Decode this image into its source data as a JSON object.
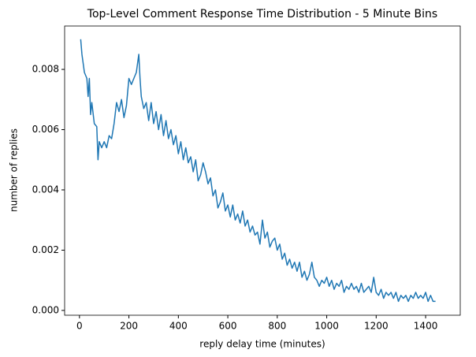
{
  "chart_data": {
    "type": "line",
    "title": "Top-Level Comment Response Time Distribution - 5 Minute Bins",
    "x_label": "reply delay time (minutes)",
    "y_label": "number of replies",
    "x": [
      5,
      10,
      20,
      30,
      35,
      40,
      45,
      50,
      60,
      70,
      75,
      80,
      90,
      100,
      110,
      120,
      130,
      140,
      150,
      160,
      170,
      180,
      190,
      200,
      210,
      220,
      230,
      240,
      245,
      250,
      260,
      270,
      280,
      290,
      300,
      310,
      320,
      330,
      340,
      350,
      360,
      370,
      380,
      390,
      400,
      410,
      420,
      430,
      440,
      450,
      460,
      470,
      480,
      490,
      500,
      510,
      520,
      530,
      540,
      550,
      560,
      570,
      580,
      590,
      600,
      610,
      620,
      630,
      640,
      650,
      660,
      670,
      680,
      690,
      700,
      710,
      720,
      730,
      740,
      750,
      760,
      770,
      780,
      790,
      800,
      810,
      820,
      830,
      840,
      850,
      860,
      870,
      880,
      890,
      900,
      910,
      920,
      930,
      940,
      950,
      960,
      970,
      980,
      990,
      1000,
      1010,
      1020,
      1030,
      1040,
      1050,
      1060,
      1070,
      1080,
      1090,
      1100,
      1110,
      1120,
      1130,
      1140,
      1150,
      1160,
      1170,
      1180,
      1190,
      1200,
      1210,
      1220,
      1230,
      1240,
      1250,
      1260,
      1270,
      1280,
      1290,
      1300,
      1310,
      1320,
      1330,
      1340,
      1350,
      1360,
      1370,
      1380,
      1390,
      1400,
      1410,
      1420,
      1430,
      1440
    ],
    "series": [
      {
        "color": "#1f77b4",
        "values": [
          0.009,
          0.0085,
          0.0079,
          0.0077,
          0.0071,
          0.0077,
          0.0065,
          0.0069,
          0.0062,
          0.0061,
          0.005,
          0.0056,
          0.0054,
          0.0056,
          0.0054,
          0.0058,
          0.0057,
          0.0062,
          0.0069,
          0.0066,
          0.007,
          0.0064,
          0.0068,
          0.0077,
          0.0075,
          0.0077,
          0.0079,
          0.0085,
          0.0077,
          0.0071,
          0.0067,
          0.0069,
          0.0063,
          0.0069,
          0.0062,
          0.0066,
          0.006,
          0.0065,
          0.0058,
          0.0063,
          0.0057,
          0.006,
          0.0055,
          0.0058,
          0.0052,
          0.0056,
          0.005,
          0.0054,
          0.0049,
          0.0051,
          0.0046,
          0.005,
          0.0043,
          0.0045,
          0.0049,
          0.0046,
          0.0042,
          0.0044,
          0.0038,
          0.004,
          0.0034,
          0.0036,
          0.0039,
          0.0033,
          0.0035,
          0.0031,
          0.0035,
          0.003,
          0.0032,
          0.0029,
          0.0033,
          0.0028,
          0.003,
          0.0026,
          0.0028,
          0.0025,
          0.0026,
          0.0022,
          0.003,
          0.0024,
          0.0026,
          0.0021,
          0.0023,
          0.0024,
          0.002,
          0.0022,
          0.0017,
          0.0019,
          0.0015,
          0.0017,
          0.0014,
          0.0016,
          0.0013,
          0.0016,
          0.0011,
          0.0013,
          0.001,
          0.0012,
          0.0016,
          0.0011,
          0.001,
          0.0008,
          0.001,
          0.0009,
          0.0011,
          0.0008,
          0.001,
          0.0007,
          0.0009,
          0.0008,
          0.001,
          0.0006,
          0.0008,
          0.0007,
          0.0009,
          0.0007,
          0.0008,
          0.0006,
          0.0009,
          0.0006,
          0.0007,
          0.0008,
          0.0006,
          0.0011,
          0.0006,
          0.0005,
          0.0007,
          0.0004,
          0.0006,
          0.0005,
          0.0006,
          0.0004,
          0.0006,
          0.0003,
          0.0005,
          0.0004,
          0.0005,
          0.0003,
          0.0005,
          0.0004,
          0.0006,
          0.0004,
          0.0005,
          0.0004,
          0.0006,
          0.0003,
          0.0005,
          0.0003,
          0.0003
        ]
      }
    ],
    "xlim": [
      -60,
      1540
    ],
    "ylim": [
      -0.00016,
      0.00944
    ],
    "xticks": [
      0,
      200,
      400,
      600,
      800,
      1000,
      1200,
      1400
    ],
    "yticks": [
      {
        "value": 0,
        "label": "0.000"
      },
      0.002,
      0.004,
      0.006,
      0.008
    ],
    "grid": false
  }
}
